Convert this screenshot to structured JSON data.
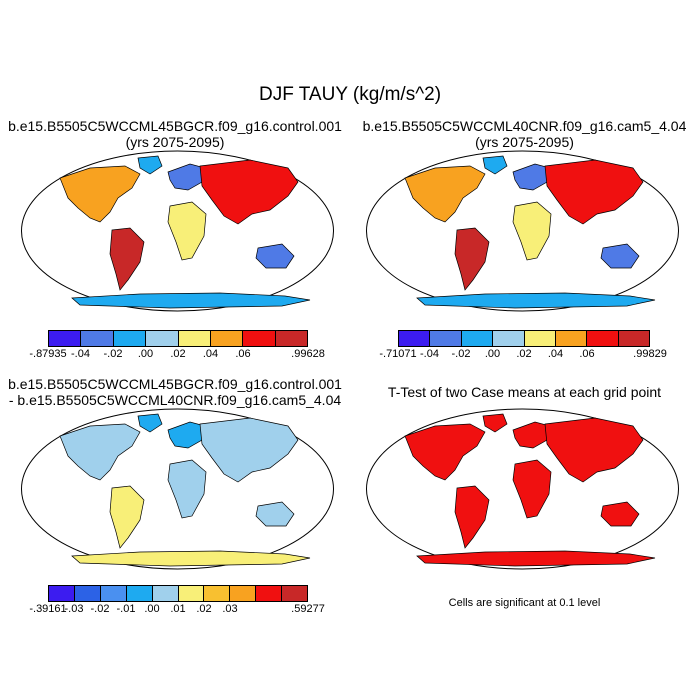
{
  "main_title": "DJF TAUY (kg/m/s^2)",
  "panels": {
    "top_left": {
      "title_line1": "b.e15.B5505C5WCCML45BGCR.f09_g16.control.001",
      "title_line2": "(yrs 2075-2095)"
    },
    "top_right": {
      "title_line1": "b.e15.B5505C5WCCML40CNR.f09_g16.cam5_4.04",
      "title_line2": "(yrs 2075-2095)"
    },
    "bottom_left": {
      "title_line1": "b.e15.B5505C5WCCML45BGCR.f09_g16.control.001",
      "title_line2": "- b.e15.B5505C5WCCML40CNR.f09_g16.cam5_4.04"
    },
    "bottom_right": {
      "title_line1": "T-Test of two Case means at each grid point",
      "note": "Cells are significant at 0.1 level"
    }
  },
  "colorbars": {
    "top_left": {
      "colors": [
        "#3c1cf0",
        "#4f7ae6",
        "#1eaaf0",
        "#a0d0ec",
        "#f8ef78",
        "#f8a220",
        "#f01010",
        "#c82828"
      ],
      "labels": [
        "-.87935",
        "-.04",
        "-.02",
        ".00",
        ".02",
        ".04",
        ".06",
        ".99628"
      ]
    },
    "top_right": {
      "colors": [
        "#3c1cf0",
        "#4f7ae6",
        "#1eaaf0",
        "#a0d0ec",
        "#f8ef78",
        "#f8a220",
        "#f01010",
        "#c82828"
      ],
      "labels": [
        "-.71071",
        "-.04",
        "-.02",
        ".00",
        ".02",
        ".04",
        ".06",
        ".99829"
      ]
    },
    "bottom_left": {
      "colors": [
        "#3c1cf0",
        "#2c62e6",
        "#4a90f0",
        "#1eaaf0",
        "#a0d0ec",
        "#f8ef78",
        "#f8c030",
        "#f8a220",
        "#f01010",
        "#c82828"
      ],
      "labels": [
        "-.39161",
        "-.03",
        "-.02",
        "-.01",
        ".00",
        ".01",
        ".02",
        ".03",
        ".59277"
      ]
    }
  },
  "map_colors": {
    "top_left": {
      "na": "#f8a220",
      "sa": "#c82828",
      "eu": "#4f7ae6",
      "af": "#f8ef78",
      "as": "#f01010",
      "au": "#4f7ae6",
      "an": "#1eaaf0",
      "gr": "#1eaaf0"
    },
    "top_right": {
      "na": "#f8a220",
      "sa": "#c82828",
      "eu": "#4f7ae6",
      "af": "#f8ef78",
      "as": "#f01010",
      "au": "#4f7ae6",
      "an": "#1eaaf0",
      "gr": "#1eaaf0"
    },
    "bottom_left": {
      "na": "#a0d0ec",
      "sa": "#f8ef78",
      "eu": "#1eaaf0",
      "af": "#a0d0ec",
      "as": "#a0d0ec",
      "au": "#a0d0ec",
      "an": "#f8ef78",
      "gr": "#1eaaf0"
    },
    "bottom_right": {
      "na": "#f01010",
      "sa": "#f01010",
      "eu": "#f01010",
      "af": "#f01010",
      "as": "#f01010",
      "au": "#f01010",
      "an": "#f01010",
      "gr": "#f01010"
    }
  }
}
